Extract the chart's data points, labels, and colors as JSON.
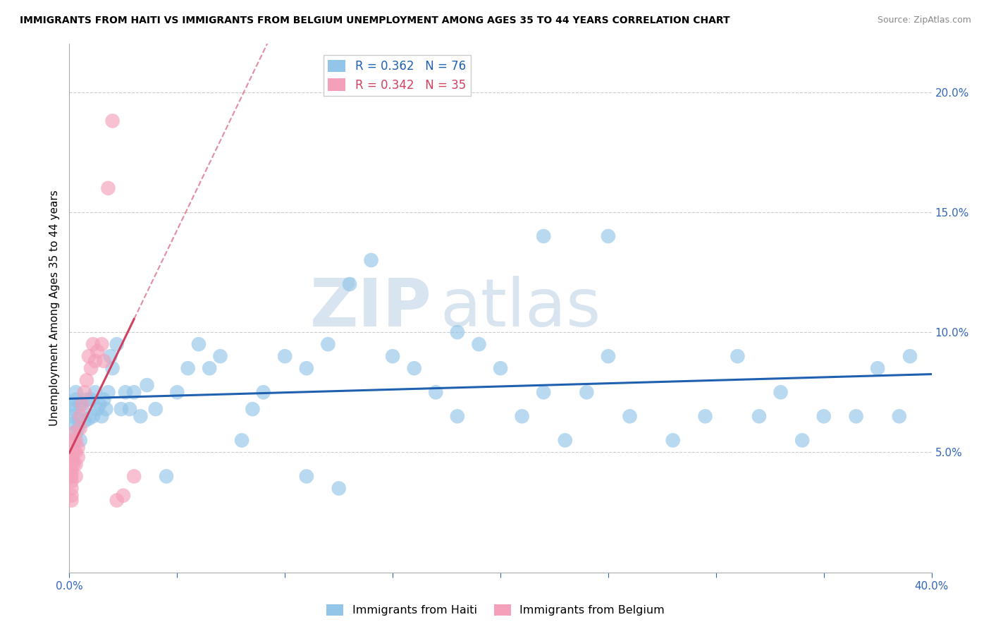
{
  "title": "IMMIGRANTS FROM HAITI VS IMMIGRANTS FROM BELGIUM UNEMPLOYMENT AMONG AGES 35 TO 44 YEARS CORRELATION CHART",
  "source": "Source: ZipAtlas.com",
  "ylabel": "Unemployment Among Ages 35 to 44 years",
  "haiti_R": 0.362,
  "haiti_N": 76,
  "belgium_R": 0.342,
  "belgium_N": 35,
  "haiti_color": "#92C5E8",
  "belgium_color": "#F4A0BA",
  "haiti_line_color": "#2060B0",
  "belgium_line_color": "#D04060",
  "watermark_color": "#D8E4EF",
  "watermark": "ZIPatlas",
  "xlim": [
    0.0,
    0.4
  ],
  "ylim": [
    0.0,
    0.22
  ],
  "yticks": [
    0.05,
    0.1,
    0.15,
    0.2
  ],
  "xtick_labels_show": [
    0.0,
    0.4
  ],
  "haiti_x": [
    0.001,
    0.001,
    0.002,
    0.002,
    0.003,
    0.003,
    0.003,
    0.004,
    0.004,
    0.005,
    0.005,
    0.006,
    0.007,
    0.008,
    0.009,
    0.01,
    0.011,
    0.012,
    0.013,
    0.014,
    0.015,
    0.016,
    0.017,
    0.018,
    0.019,
    0.02,
    0.022,
    0.024,
    0.026,
    0.028,
    0.03,
    0.033,
    0.036,
    0.04,
    0.045,
    0.05,
    0.055,
    0.06,
    0.065,
    0.07,
    0.08,
    0.09,
    0.1,
    0.11,
    0.12,
    0.13,
    0.14,
    0.15,
    0.16,
    0.17,
    0.18,
    0.19,
    0.2,
    0.21,
    0.22,
    0.23,
    0.24,
    0.25,
    0.26,
    0.28,
    0.295,
    0.31,
    0.32,
    0.33,
    0.34,
    0.35,
    0.365,
    0.375,
    0.385,
    0.39,
    0.25,
    0.22,
    0.18,
    0.125,
    0.11,
    0.085
  ],
  "haiti_y": [
    0.065,
    0.07,
    0.068,
    0.062,
    0.072,
    0.058,
    0.075,
    0.064,
    0.06,
    0.07,
    0.055,
    0.068,
    0.063,
    0.072,
    0.064,
    0.072,
    0.065,
    0.075,
    0.068,
    0.07,
    0.065,
    0.072,
    0.068,
    0.075,
    0.09,
    0.085,
    0.095,
    0.068,
    0.075,
    0.068,
    0.075,
    0.065,
    0.078,
    0.068,
    0.04,
    0.075,
    0.085,
    0.095,
    0.085,
    0.09,
    0.055,
    0.075,
    0.09,
    0.085,
    0.095,
    0.12,
    0.13,
    0.09,
    0.085,
    0.075,
    0.065,
    0.095,
    0.085,
    0.065,
    0.075,
    0.055,
    0.075,
    0.09,
    0.065,
    0.055,
    0.065,
    0.09,
    0.065,
    0.075,
    0.055,
    0.065,
    0.065,
    0.085,
    0.065,
    0.09,
    0.14,
    0.14,
    0.1,
    0.035,
    0.04,
    0.068
  ],
  "belgium_x": [
    0.001,
    0.001,
    0.001,
    0.001,
    0.001,
    0.001,
    0.001,
    0.001,
    0.002,
    0.002,
    0.002,
    0.002,
    0.003,
    0.003,
    0.003,
    0.003,
    0.004,
    0.004,
    0.005,
    0.005,
    0.006,
    0.007,
    0.008,
    0.009,
    0.01,
    0.011,
    0.012,
    0.013,
    0.015,
    0.016,
    0.018,
    0.02,
    0.022,
    0.025,
    0.03
  ],
  "belgium_y": [
    0.04,
    0.042,
    0.045,
    0.048,
    0.03,
    0.032,
    0.035,
    0.038,
    0.045,
    0.05,
    0.055,
    0.058,
    0.04,
    0.045,
    0.05,
    0.055,
    0.048,
    0.052,
    0.06,
    0.065,
    0.07,
    0.075,
    0.08,
    0.09,
    0.085,
    0.095,
    0.088,
    0.092,
    0.095,
    0.088,
    0.16,
    0.188,
    0.03,
    0.032,
    0.04
  ]
}
